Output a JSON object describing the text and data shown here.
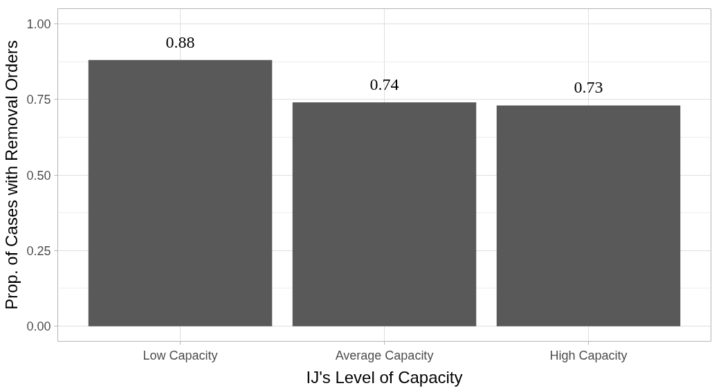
{
  "chart_data": {
    "type": "bar",
    "xlabel": "IJ's Level of Capacity",
    "ylabel": "Prop. of Cases with Removal Orders",
    "categories": [
      "Low Capacity",
      "Average Capacity",
      "High Capacity"
    ],
    "values": [
      0.88,
      0.74,
      0.73
    ],
    "color": "#595959",
    "ylim": [
      -0.05,
      1.05
    ],
    "yticks": [
      {
        "value": 0,
        "label": "0.00"
      },
      {
        "value": 0.25,
        "label": "0.25"
      },
      {
        "value": 0.5,
        "label": "0.50"
      },
      {
        "value": 0.75,
        "label": "0.75"
      },
      {
        "value": 1,
        "label": "1.00"
      }
    ],
    "grid": true,
    "data_labels": true
  }
}
